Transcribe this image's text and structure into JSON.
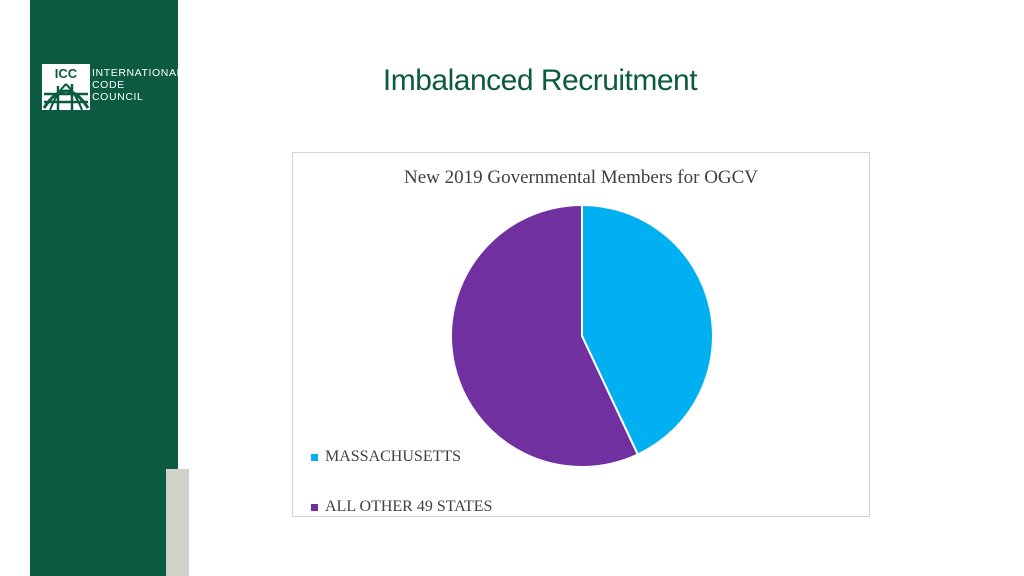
{
  "slide": {
    "title": "Imbalanced Recruitment"
  },
  "logo": {
    "mark_text": "ICC",
    "lines": [
      "INTERNATIONAL",
      "CODE",
      "COUNCIL"
    ]
  },
  "colors": {
    "sidebar": "#0b5a41",
    "title": "#0b5a41",
    "massachusetts": "#00b0f0",
    "other_states": "#7030a0"
  },
  "chart_data": {
    "type": "pie",
    "title": "New 2019 Governmental Members for OGCV",
    "slices": [
      {
        "label": "MASSACHUSETTS",
        "value": 43,
        "color": "#00b0f0"
      },
      {
        "label": "ALL OTHER 49 STATES",
        "value": 57,
        "color": "#7030a0"
      }
    ],
    "legend_position": "bottom-left"
  }
}
